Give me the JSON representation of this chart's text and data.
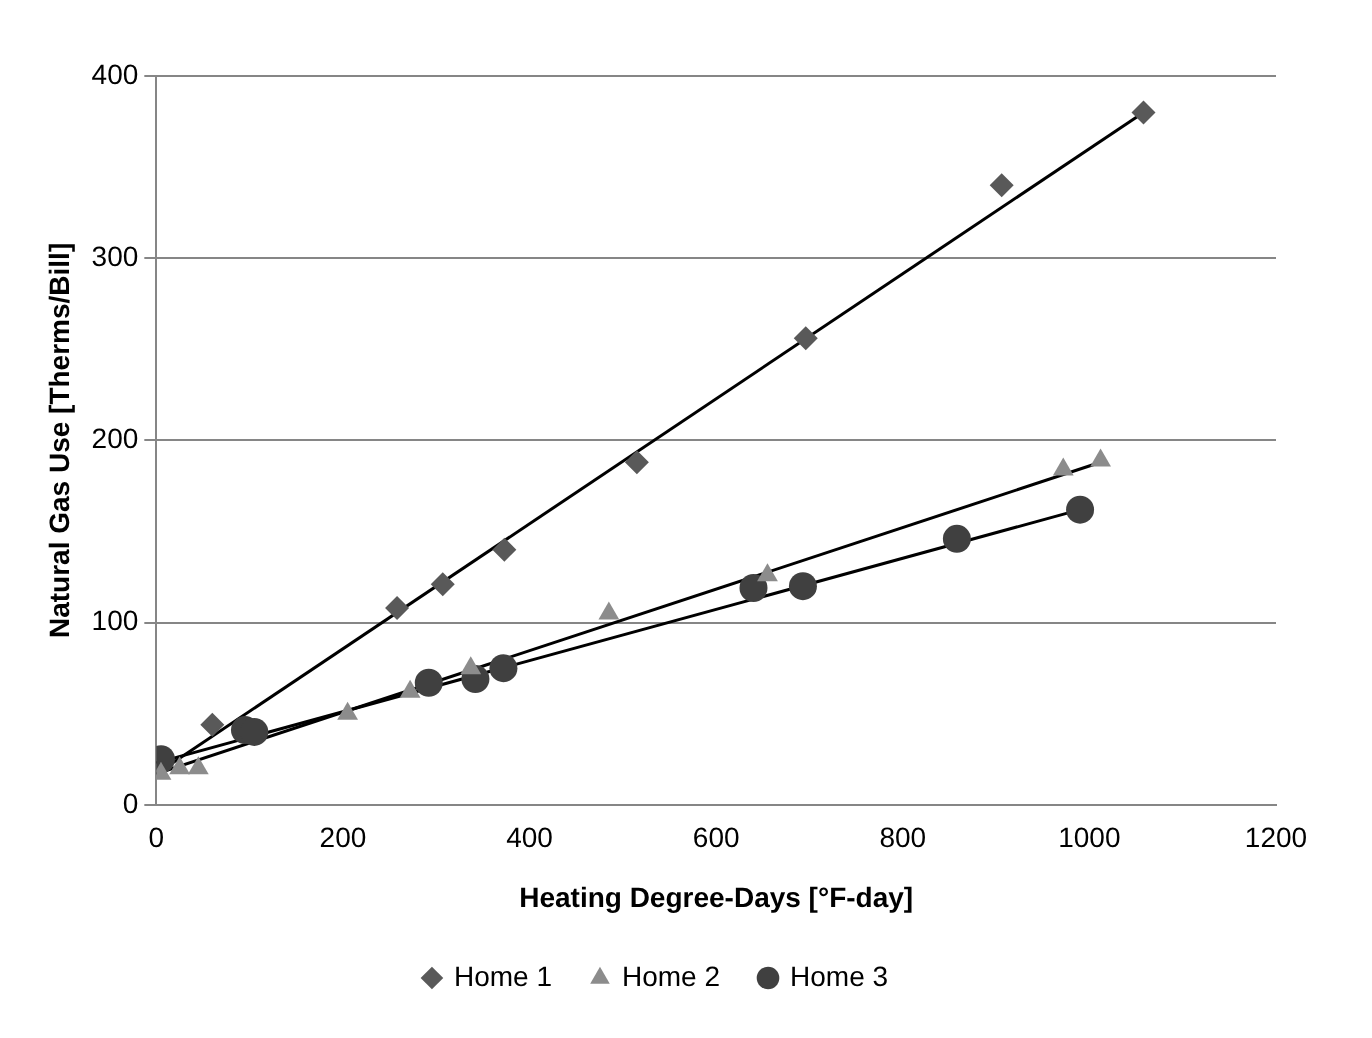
{
  "chart_data": {
    "type": "scatter",
    "xlabel": "Heating Degree-Days [°F-day]",
    "ylabel": "Natural Gas Use [Therms/Bill]",
    "xlim": [
      0,
      1200
    ],
    "xticks": [
      0,
      200,
      400,
      600,
      800,
      1000,
      1200
    ],
    "ylim": [
      0,
      400
    ],
    "yticks": [
      0,
      100,
      200,
      300,
      400
    ],
    "grid": "y",
    "legend": "bottom",
    "series": [
      {
        "name": "Home 1",
        "color": "#595959",
        "marker": "diamond",
        "x": [
          60,
          258,
          307,
          373,
          515,
          696,
          906,
          1058
        ],
        "values": [
          44,
          108,
          121,
          140,
          188,
          256,
          340,
          380
        ]
      },
      {
        "name": "Home 2",
        "color": "#8c8c8c",
        "marker": "triangle",
        "x": [
          5,
          25,
          45,
          205,
          272,
          337,
          485,
          655,
          972,
          1012
        ],
        "values": [
          17,
          20,
          20,
          50,
          62,
          75,
          105,
          126,
          184,
          189
        ]
      },
      {
        "name": "Home 3",
        "color": "#404040",
        "marker": "circle",
        "x": [
          5,
          95,
          105,
          292,
          342,
          372,
          640,
          693,
          858,
          990
        ],
        "values": [
          25,
          41,
          40,
          67,
          69,
          75,
          119,
          120,
          146,
          162
        ]
      },
      {
        "type": "line",
        "color": "#000000",
        "marker": "none",
        "x": [
          0,
          1058
        ],
        "values": [
          17,
          380
        ]
      },
      {
        "type": "line",
        "color": "#000000",
        "marker": "none",
        "x": [
          0,
          1012
        ],
        "values": [
          17,
          188
        ]
      },
      {
        "type": "line",
        "color": "#000000",
        "marker": "none",
        "x": [
          0,
          990
        ],
        "values": [
          23,
          162
        ]
      }
    ]
  }
}
